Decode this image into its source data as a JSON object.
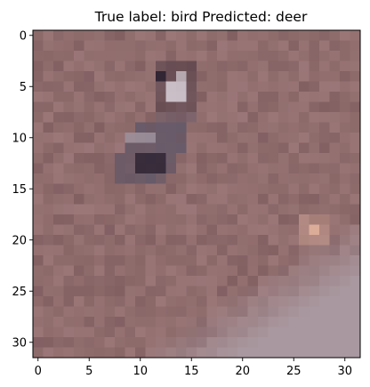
{
  "chart_data": {
    "type": "image",
    "title": "True label: bird Predicted: deer",
    "xlabel": "",
    "ylabel": "",
    "image_size": [
      32,
      32
    ],
    "xlim": [
      -0.5,
      31.5
    ],
    "ylim": [
      31.5,
      -0.5
    ],
    "xticks": [
      0,
      5,
      10,
      15,
      20,
      25,
      30
    ],
    "yticks": [
      0,
      5,
      10,
      15,
      20,
      25,
      30
    ],
    "xtick_labels": [
      "0",
      "5",
      "10",
      "15",
      "20",
      "25",
      "30"
    ],
    "ytick_labels": [
      "0",
      "5",
      "10",
      "15",
      "20",
      "25",
      "30"
    ],
    "grid": false,
    "colors": {
      "background": "#8d6a6a",
      "ground_dark": "#77555a",
      "ground_light": "#a47f81",
      "ground_pale": "#a9989f",
      "bird_dark": "#2b2030",
      "bird_mid": "#5d5566",
      "bird_light": "#e8e2ea",
      "spot": "#e3b39c"
    }
  }
}
